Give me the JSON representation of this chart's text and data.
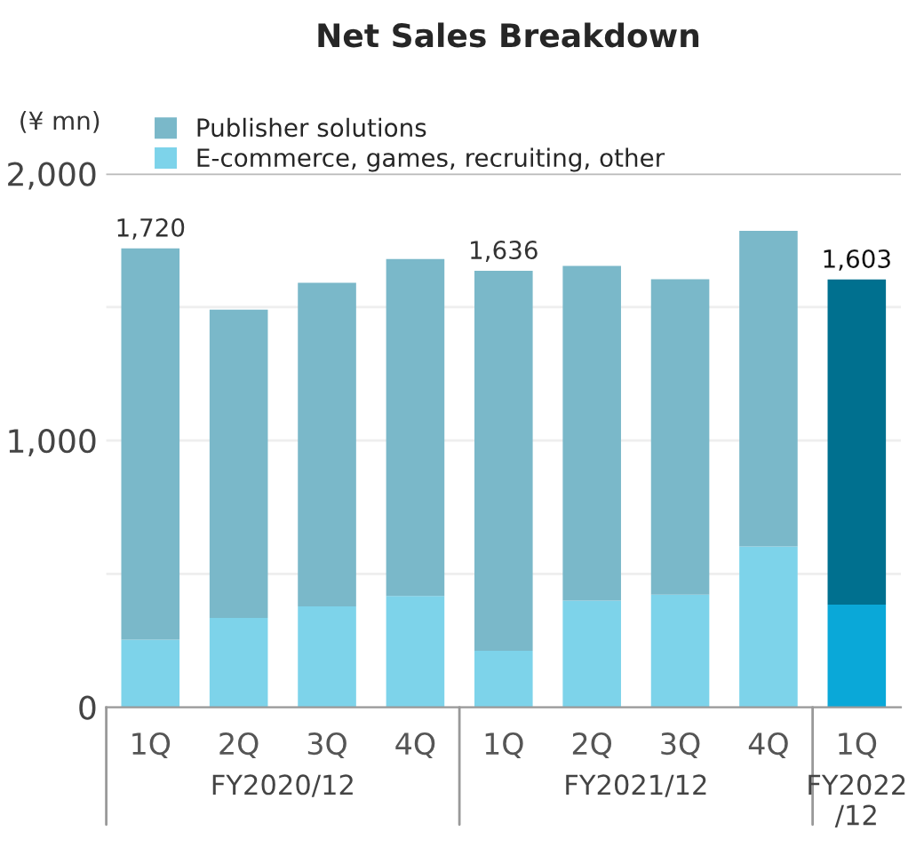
{
  "chart_data": {
    "type": "bar",
    "title": "Net Sales Breakdown",
    "ylabel": "(¥ mn)",
    "categories": [
      "1Q",
      "2Q",
      "3Q",
      "4Q",
      "1Q",
      "2Q",
      "3Q",
      "4Q",
      "1Q"
    ],
    "stacked": true,
    "series": [
      {
        "name": "E-commerce, games, recruiting, other",
        "color": "#7dd3ea",
        "colors": [
          "#7dd3ea",
          "#7dd3ea",
          "#7dd3ea",
          "#7dd3ea",
          "#7dd3ea",
          "#7dd3ea",
          "#7dd3ea",
          "#7dd3ea",
          "#0aa8d8"
        ],
        "values": [
          253,
          335,
          378,
          417,
          212,
          400,
          422,
          603,
          385
        ]
      },
      {
        "name": "Publisher solutions",
        "color": "#7ab8c9",
        "colors": [
          "#7ab8c9",
          "#7ab8c9",
          "#7ab8c9",
          "#7ab8c9",
          "#7ab8c9",
          "#7ab8c9",
          "#7ab8c9",
          "#7ab8c9",
          "#00708f"
        ],
        "values": [
          1467,
          1155,
          1213,
          1263,
          1424,
          1254,
          1182,
          1183,
          1218
        ]
      }
    ],
    "totals": [
      "1,720",
      null,
      null,
      null,
      "1,636",
      null,
      null,
      null,
      "1,603"
    ],
    "ylim": [
      0,
      2000
    ],
    "yticks": [
      0,
      {
        "value": 500,
        "label": null
      },
      {
        "value": 1000,
        "label": "1,000"
      },
      {
        "value": 1500,
        "label": null
      },
      {
        "value": 2000,
        "label": "2,000"
      }
    ],
    "grid": "y",
    "legend": "top",
    "annotations": [
      "FY2020/12",
      "FY2021/12",
      "FY2022\n/12"
    ]
  }
}
